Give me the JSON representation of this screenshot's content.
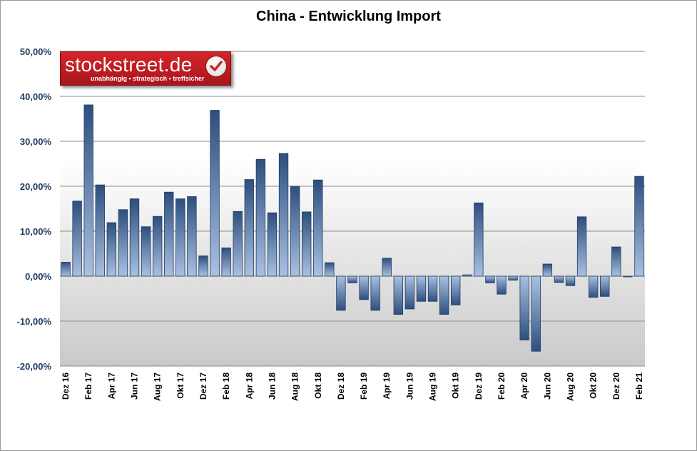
{
  "logo": {
    "name": "stockstreet.de",
    "tagline": "unabhängig • strategisch • treffsicher",
    "color": "#c81f25"
  },
  "chart_data": {
    "type": "bar",
    "title": "China - Entwicklung Import",
    "ylim": [
      -20,
      50
    ],
    "yticks": [
      50,
      40,
      30,
      20,
      10,
      0,
      -10,
      -20
    ],
    "ytick_labels": [
      "50,00%",
      "40,00%",
      "30,00%",
      "20,00%",
      "10,00%",
      "0,00%",
      "-10,00%",
      "-20,00%"
    ],
    "grid": true,
    "legend": "none",
    "bar_color": "#34598c",
    "categories": [
      "Dez 16",
      "Jan 17",
      "Feb 17",
      "Mär 17",
      "Apr 17",
      "Mai 17",
      "Jun 17",
      "Jul 17",
      "Aug 17",
      "Sep 17",
      "Okt 17",
      "Nov 17",
      "Dez 17",
      "Jan 18",
      "Feb 18",
      "Mär 18",
      "Apr 18",
      "Mai 18",
      "Jun 18",
      "Jul 18",
      "Aug 18",
      "Sep 18",
      "Okt 18",
      "Nov 18",
      "Dez 18",
      "Jan 19",
      "Feb 19",
      "Mär 19",
      "Apr 19",
      "Mai 19",
      "Jun 19",
      "Jul 19",
      "Aug 19",
      "Sep 19",
      "Okt 19",
      "Nov 19",
      "Dez 19",
      "Jan 20",
      "Feb 20",
      "Mär 20",
      "Apr 20",
      "Mai 20",
      "Jun 20",
      "Jul 20",
      "Aug 20",
      "Sep 20",
      "Okt 20",
      "Nov 20",
      "Dez 20",
      "Jan 21",
      "Feb 21"
    ],
    "x_tick_labels": [
      "Dez 16",
      "",
      "Feb 17",
      "",
      "Apr 17",
      "",
      "Jun 17",
      "",
      "Aug 17",
      "",
      "Okt 17",
      "",
      "Dez 17",
      "",
      "Feb 18",
      "",
      "Apr 18",
      "",
      "Jun 18",
      "",
      "Aug 18",
      "",
      "Okt 18",
      "",
      "Dez 18",
      "",
      "Feb 19",
      "",
      "Apr 19",
      "",
      "Jun 19",
      "",
      "Aug 19",
      "",
      "Okt 19",
      "",
      "Dez 19",
      "",
      "Feb 20",
      "",
      "Apr 20",
      "",
      "Jun 20",
      "",
      "Aug 20",
      "",
      "Okt 20",
      "",
      "Dez 20",
      "",
      "Feb 21"
    ],
    "values": [
      3.1,
      16.7,
      38.1,
      20.3,
      11.9,
      14.8,
      17.2,
      11.0,
      13.3,
      18.7,
      17.2,
      17.7,
      4.5,
      36.9,
      6.3,
      14.4,
      21.5,
      26.0,
      14.1,
      27.3,
      20.0,
      14.3,
      21.4,
      3.0,
      -7.6,
      -1.5,
      -5.2,
      -7.6,
      4.0,
      -8.5,
      -7.3,
      -5.6,
      -5.6,
      -8.5,
      -6.4,
      0.3,
      16.3,
      -1.5,
      -4.0,
      -0.9,
      -14.2,
      -16.7,
      2.7,
      -1.4,
      -2.1,
      13.2,
      -4.7,
      -4.5,
      6.5,
      0.0,
      22.2
    ]
  }
}
